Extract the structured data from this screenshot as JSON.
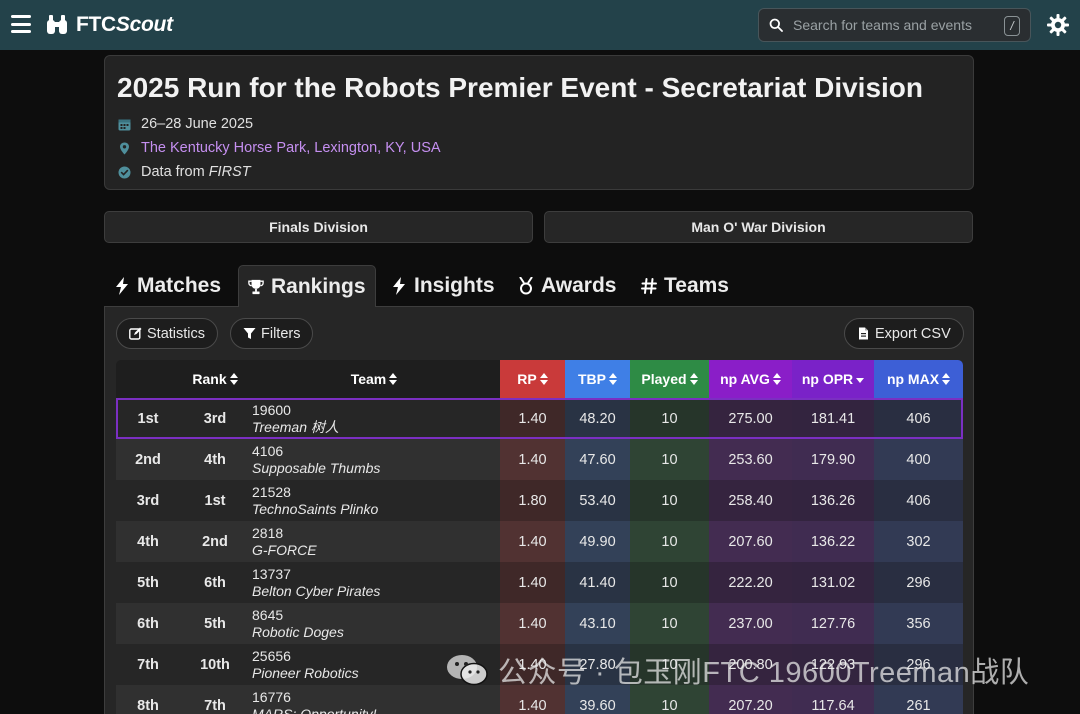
{
  "nav": {
    "logo_prefix": "FTC",
    "logo_suffix": "Scout",
    "search_placeholder": "Search for teams and events",
    "search_shortcut": "/"
  },
  "event": {
    "title": "2025 Run for the Robots Premier Event - Secretariat Division",
    "dates": "26–28 June 2025",
    "location": "The Kentucky Horse Park, Lexington, KY, USA",
    "data_source_prefix": "Data from ",
    "data_source_name": "FIRST"
  },
  "divisions": [
    "Finals Division",
    "Man O' War Division"
  ],
  "tabs": [
    {
      "label": "Matches",
      "icon": "bolt-icon"
    },
    {
      "label": "Rankings",
      "icon": "trophy-icon",
      "active": true
    },
    {
      "label": "Insights",
      "icon": "bolt-icon"
    },
    {
      "label": "Awards",
      "icon": "medal-icon"
    },
    {
      "label": "Teams",
      "icon": "hash-icon"
    }
  ],
  "toolbar": {
    "statistics_label": "Statistics",
    "filters_label": "Filters",
    "export_label": "Export CSV"
  },
  "table": {
    "headers": {
      "rank": "Rank",
      "team": "Team",
      "rp": "RP",
      "tbp": "TBP",
      "played": "Played",
      "np_avg": "np AVG",
      "np_opr": "np OPR",
      "np_max": "np MAX"
    },
    "colors": {
      "rp": "#c93a3a",
      "tbp": "#3f7fe6",
      "played": "#2e8b45",
      "np_avg": "#8a1ec8",
      "np_opr": "#7a22c8",
      "np_max": "#3d5fd6"
    },
    "rows": [
      {
        "pos": "1st",
        "rank": "3rd",
        "number": "19600",
        "name": "Treeman 树人",
        "rp": "1.40",
        "tbp": "48.20",
        "played": "10",
        "np_avg": "275.00",
        "np_opr": "181.41",
        "np_max": "406"
      },
      {
        "pos": "2nd",
        "rank": "4th",
        "number": "4106",
        "name": "Supposable Thumbs",
        "rp": "1.40",
        "tbp": "47.60",
        "played": "10",
        "np_avg": "253.60",
        "np_opr": "179.90",
        "np_max": "400"
      },
      {
        "pos": "3rd",
        "rank": "1st",
        "number": "21528",
        "name": "TechnoSaints Plinko",
        "rp": "1.80",
        "tbp": "53.40",
        "played": "10",
        "np_avg": "258.40",
        "np_opr": "136.26",
        "np_max": "406"
      },
      {
        "pos": "4th",
        "rank": "2nd",
        "number": "2818",
        "name": "G-FORCE",
        "rp": "1.40",
        "tbp": "49.90",
        "played": "10",
        "np_avg": "207.60",
        "np_opr": "136.22",
        "np_max": "302"
      },
      {
        "pos": "5th",
        "rank": "6th",
        "number": "13737",
        "name": "Belton Cyber Pirates",
        "rp": "1.40",
        "tbp": "41.40",
        "played": "10",
        "np_avg": "222.20",
        "np_opr": "131.02",
        "np_max": "296"
      },
      {
        "pos": "6th",
        "rank": "5th",
        "number": "8645",
        "name": "Robotic Doges",
        "rp": "1.40",
        "tbp": "43.10",
        "played": "10",
        "np_avg": "237.00",
        "np_opr": "127.76",
        "np_max": "356"
      },
      {
        "pos": "7th",
        "rank": "10th",
        "number": "25656",
        "name": "Pioneer Robotics",
        "rp": "1.40",
        "tbp": "27.80",
        "played": "10",
        "np_avg": "200.80",
        "np_opr": "122.93",
        "np_max": "296"
      },
      {
        "pos": "8th",
        "rank": "7th",
        "number": "16776",
        "name": "MARS: Opportunity!",
        "rp": "1.40",
        "tbp": "39.60",
        "played": "10",
        "np_avg": "207.20",
        "np_opr": "117.64",
        "np_max": "261"
      }
    ]
  },
  "watermark": "公众号 · 包玉刚FTC 19600Treeman战队"
}
